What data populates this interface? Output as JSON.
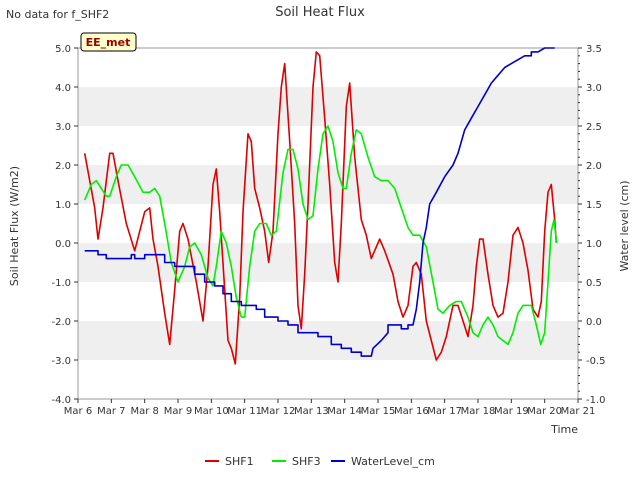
{
  "chart_data": {
    "type": "line",
    "title": "Soil Heat Flux",
    "note": "No data for f_SHF2",
    "site_badge": "EE_met",
    "xlabel": "Time",
    "ylabel_left": "Soil Heat Flux (W/m2)",
    "ylabel_right": "Water level (cm)",
    "x_ticks": [
      "Mar 6",
      "Mar 7",
      "Mar 8",
      "Mar 9",
      "Mar 10",
      "Mar 11",
      "Mar 12",
      "Mar 13",
      "Mar 14",
      "Mar 15",
      "Mar 16",
      "Mar 17",
      "Mar 18",
      "Mar 19",
      "Mar 20",
      "Mar 21"
    ],
    "x_range": [
      6,
      21
    ],
    "ylim_left": [
      -4.0,
      5.0
    ],
    "ylim_right": [
      -1.0,
      3.5
    ],
    "y_ticks_left": [
      "-4.0",
      "-3.0",
      "-2.0",
      "-1.0",
      "0.0",
      "1.0",
      "2.0",
      "3.0",
      "4.0",
      "5.0"
    ],
    "y_ticks_right": [
      "-1.0",
      "-0.5",
      "0.0",
      "0.5",
      "1.0",
      "1.5",
      "2.0",
      "2.5",
      "3.0",
      "3.5"
    ],
    "series": [
      {
        "name": "SHF1",
        "color": "#dd0000",
        "axis": "left",
        "points": [
          [
            6.2,
            2.3
          ],
          [
            6.5,
            0.9
          ],
          [
            6.6,
            0.1
          ],
          [
            6.75,
            0.9
          ],
          [
            6.95,
            2.3
          ],
          [
            7.05,
            2.3
          ],
          [
            7.2,
            1.6
          ],
          [
            7.45,
            0.5
          ],
          [
            7.7,
            -0.2
          ],
          [
            7.85,
            0.3
          ],
          [
            8.0,
            0.8
          ],
          [
            8.15,
            0.9
          ],
          [
            8.25,
            0.1
          ],
          [
            8.4,
            -0.6
          ],
          [
            8.6,
            -1.8
          ],
          [
            8.75,
            -2.6
          ],
          [
            8.9,
            -1.2
          ],
          [
            9.05,
            0.3
          ],
          [
            9.15,
            0.5
          ],
          [
            9.3,
            0.1
          ],
          [
            9.55,
            -1.0
          ],
          [
            9.75,
            -2.0
          ],
          [
            9.9,
            -0.6
          ],
          [
            10.05,
            1.5
          ],
          [
            10.15,
            1.9
          ],
          [
            10.25,
            0.8
          ],
          [
            10.4,
            -1.2
          ],
          [
            10.5,
            -2.5
          ],
          [
            10.6,
            -2.7
          ],
          [
            10.72,
            -3.1
          ],
          [
            10.85,
            -1.4
          ],
          [
            10.95,
            0.8
          ],
          [
            11.1,
            2.8
          ],
          [
            11.2,
            2.6
          ],
          [
            11.3,
            1.4
          ],
          [
            11.45,
            0.9
          ],
          [
            11.6,
            0.3
          ],
          [
            11.72,
            -0.5
          ],
          [
            11.85,
            0.3
          ],
          [
            12.0,
            2.8
          ],
          [
            12.1,
            4.0
          ],
          [
            12.2,
            4.6
          ],
          [
            12.35,
            2.6
          ],
          [
            12.5,
            0.5
          ],
          [
            12.6,
            -1.6
          ],
          [
            12.7,
            -2.2
          ],
          [
            12.8,
            -0.8
          ],
          [
            12.9,
            1.0
          ],
          [
            13.05,
            4.0
          ],
          [
            13.15,
            4.9
          ],
          [
            13.25,
            4.8
          ],
          [
            13.4,
            3.2
          ],
          [
            13.55,
            1.5
          ],
          [
            13.7,
            -0.5
          ],
          [
            13.8,
            -1.0
          ],
          [
            13.9,
            0.5
          ],
          [
            14.05,
            3.5
          ],
          [
            14.15,
            4.1
          ],
          [
            14.3,
            2.2
          ],
          [
            14.5,
            0.6
          ],
          [
            14.65,
            0.2
          ],
          [
            14.8,
            -0.4
          ],
          [
            14.95,
            -0.1
          ],
          [
            15.05,
            0.1
          ],
          [
            15.2,
            -0.2
          ],
          [
            15.45,
            -0.8
          ],
          [
            15.6,
            -1.5
          ],
          [
            15.75,
            -1.9
          ],
          [
            15.9,
            -1.6
          ],
          [
            16.05,
            -0.6
          ],
          [
            16.15,
            -0.5
          ],
          [
            16.3,
            -0.8
          ],
          [
            16.45,
            -2.0
          ],
          [
            16.6,
            -2.5
          ],
          [
            16.75,
            -3.0
          ],
          [
            16.9,
            -2.8
          ],
          [
            17.05,
            -2.4
          ],
          [
            17.25,
            -1.6
          ],
          [
            17.4,
            -1.6
          ],
          [
            17.55,
            -2.0
          ],
          [
            17.7,
            -2.4
          ],
          [
            17.85,
            -1.6
          ],
          [
            17.95,
            -0.6
          ],
          [
            18.05,
            0.1
          ],
          [
            18.15,
            0.1
          ],
          [
            18.3,
            -0.8
          ],
          [
            18.45,
            -1.6
          ],
          [
            18.6,
            -1.9
          ],
          [
            18.75,
            -1.8
          ],
          [
            18.9,
            -1.0
          ],
          [
            19.05,
            0.2
          ],
          [
            19.2,
            0.4
          ],
          [
            19.35,
            0.0
          ],
          [
            19.5,
            -0.7
          ],
          [
            19.65,
            -1.7
          ],
          [
            19.8,
            -1.9
          ],
          [
            19.9,
            -1.5
          ],
          [
            20.0,
            0.3
          ],
          [
            20.1,
            1.3
          ],
          [
            20.2,
            1.5
          ],
          [
            20.3,
            0.6
          ],
          [
            20.35,
            0.0
          ]
        ]
      },
      {
        "name": "SHF3",
        "color": "#00ee00",
        "axis": "left",
        "points": [
          [
            6.2,
            1.1
          ],
          [
            6.4,
            1.5
          ],
          [
            6.55,
            1.6
          ],
          [
            6.7,
            1.4
          ],
          [
            6.85,
            1.2
          ],
          [
            6.95,
            1.2
          ],
          [
            7.15,
            1.7
          ],
          [
            7.3,
            2.0
          ],
          [
            7.5,
            2.0
          ],
          [
            7.7,
            1.7
          ],
          [
            7.95,
            1.3
          ],
          [
            8.15,
            1.3
          ],
          [
            8.3,
            1.4
          ],
          [
            8.45,
            1.2
          ],
          [
            8.6,
            0.5
          ],
          [
            8.8,
            -0.5
          ],
          [
            9.0,
            -1.0
          ],
          [
            9.2,
            -0.6
          ],
          [
            9.35,
            -0.1
          ],
          [
            9.5,
            0.0
          ],
          [
            9.7,
            -0.3
          ],
          [
            9.9,
            -0.9
          ],
          [
            10.05,
            -1.1
          ],
          [
            10.15,
            -0.6
          ],
          [
            10.3,
            0.3
          ],
          [
            10.45,
            0.0
          ],
          [
            10.6,
            -0.6
          ],
          [
            10.75,
            -1.4
          ],
          [
            10.9,
            -1.9
          ],
          [
            11.0,
            -1.9
          ],
          [
            11.15,
            -0.6
          ],
          [
            11.3,
            0.3
          ],
          [
            11.45,
            0.5
          ],
          [
            11.65,
            0.5
          ],
          [
            11.8,
            0.2
          ],
          [
            11.95,
            0.3
          ],
          [
            12.15,
            1.8
          ],
          [
            12.3,
            2.4
          ],
          [
            12.45,
            2.4
          ],
          [
            12.6,
            1.9
          ],
          [
            12.75,
            1.0
          ],
          [
            12.9,
            0.6
          ],
          [
            13.05,
            0.7
          ],
          [
            13.2,
            1.9
          ],
          [
            13.35,
            2.8
          ],
          [
            13.5,
            3.0
          ],
          [
            13.65,
            2.6
          ],
          [
            13.8,
            1.8
          ],
          [
            13.95,
            1.4
          ],
          [
            14.05,
            1.4
          ],
          [
            14.2,
            2.3
          ],
          [
            14.35,
            2.9
          ],
          [
            14.5,
            2.8
          ],
          [
            14.7,
            2.2
          ],
          [
            14.9,
            1.7
          ],
          [
            15.1,
            1.6
          ],
          [
            15.3,
            1.6
          ],
          [
            15.5,
            1.4
          ],
          [
            15.7,
            0.9
          ],
          [
            15.9,
            0.4
          ],
          [
            16.05,
            0.2
          ],
          [
            16.25,
            0.2
          ],
          [
            16.45,
            -0.1
          ],
          [
            16.65,
            -1.0
          ],
          [
            16.8,
            -1.7
          ],
          [
            16.95,
            -1.8
          ],
          [
            17.15,
            -1.6
          ],
          [
            17.35,
            -1.5
          ],
          [
            17.5,
            -1.5
          ],
          [
            17.7,
            -1.9
          ],
          [
            17.85,
            -2.3
          ],
          [
            18.0,
            -2.4
          ],
          [
            18.15,
            -2.1
          ],
          [
            18.3,
            -1.9
          ],
          [
            18.45,
            -2.1
          ],
          [
            18.6,
            -2.4
          ],
          [
            18.75,
            -2.5
          ],
          [
            18.9,
            -2.6
          ],
          [
            19.05,
            -2.3
          ],
          [
            19.2,
            -1.8
          ],
          [
            19.35,
            -1.6
          ],
          [
            19.6,
            -1.6
          ],
          [
            19.75,
            -2.1
          ],
          [
            19.88,
            -2.6
          ],
          [
            20.0,
            -2.3
          ],
          [
            20.1,
            -1.0
          ],
          [
            20.2,
            0.3
          ],
          [
            20.28,
            0.6
          ],
          [
            20.32,
            0.3
          ],
          [
            20.36,
            0.0
          ]
        ]
      },
      {
        "name": "WaterLevel_cm",
        "color": "#0000cc",
        "axis": "right",
        "points": [
          [
            6.2,
            0.9
          ],
          [
            6.6,
            0.9
          ],
          [
            6.6,
            0.85
          ],
          [
            6.85,
            0.85
          ],
          [
            6.85,
            0.8
          ],
          [
            7.6,
            0.8
          ],
          [
            7.6,
            0.85
          ],
          [
            7.7,
            0.85
          ],
          [
            7.7,
            0.8
          ],
          [
            8.0,
            0.8
          ],
          [
            8.0,
            0.85
          ],
          [
            8.6,
            0.85
          ],
          [
            8.6,
            0.75
          ],
          [
            8.9,
            0.75
          ],
          [
            8.9,
            0.7
          ],
          [
            9.5,
            0.7
          ],
          [
            9.5,
            0.6
          ],
          [
            9.8,
            0.6
          ],
          [
            9.8,
            0.5
          ],
          [
            10.1,
            0.5
          ],
          [
            10.1,
            0.45
          ],
          [
            10.35,
            0.45
          ],
          [
            10.35,
            0.35
          ],
          [
            10.6,
            0.35
          ],
          [
            10.6,
            0.25
          ],
          [
            10.9,
            0.25
          ],
          [
            10.9,
            0.2
          ],
          [
            11.35,
            0.2
          ],
          [
            11.35,
            0.15
          ],
          [
            11.6,
            0.15
          ],
          [
            11.6,
            0.05
          ],
          [
            12.0,
            0.05
          ],
          [
            12.0,
            0.0
          ],
          [
            12.3,
            0.0
          ],
          [
            12.3,
            -0.05
          ],
          [
            12.6,
            -0.05
          ],
          [
            12.6,
            -0.15
          ],
          [
            13.2,
            -0.15
          ],
          [
            13.2,
            -0.2
          ],
          [
            13.6,
            -0.2
          ],
          [
            13.6,
            -0.3
          ],
          [
            13.9,
            -0.3
          ],
          [
            13.9,
            -0.35
          ],
          [
            14.2,
            -0.35
          ],
          [
            14.2,
            -0.4
          ],
          [
            14.5,
            -0.4
          ],
          [
            14.5,
            -0.45
          ],
          [
            14.8,
            -0.45
          ],
          [
            14.85,
            -0.35
          ],
          [
            15.1,
            -0.25
          ],
          [
            15.3,
            -0.15
          ],
          [
            15.3,
            -0.05
          ],
          [
            15.7,
            -0.05
          ],
          [
            15.7,
            -0.1
          ],
          [
            15.9,
            -0.1
          ],
          [
            15.9,
            -0.05
          ],
          [
            16.05,
            -0.05
          ],
          [
            16.15,
            0.15
          ],
          [
            16.25,
            0.5
          ],
          [
            16.35,
            1.0
          ],
          [
            16.45,
            1.2
          ],
          [
            16.55,
            1.5
          ],
          [
            16.75,
            1.65
          ],
          [
            17.0,
            1.85
          ],
          [
            17.25,
            2.0
          ],
          [
            17.4,
            2.15
          ],
          [
            17.6,
            2.45
          ],
          [
            17.8,
            2.6
          ],
          [
            18.0,
            2.75
          ],
          [
            18.2,
            2.9
          ],
          [
            18.4,
            3.05
          ],
          [
            18.6,
            3.15
          ],
          [
            18.8,
            3.25
          ],
          [
            19.0,
            3.3
          ],
          [
            19.2,
            3.35
          ],
          [
            19.4,
            3.4
          ],
          [
            19.6,
            3.4
          ],
          [
            19.6,
            3.45
          ],
          [
            19.8,
            3.45
          ],
          [
            20.0,
            3.5
          ],
          [
            20.3,
            3.5
          ]
        ]
      }
    ],
    "legend": [
      "SHF1",
      "SHF3",
      "WaterLevel_cm"
    ],
    "legend_position": "bottom-center",
    "grid": "alternating horizontal bands"
  }
}
